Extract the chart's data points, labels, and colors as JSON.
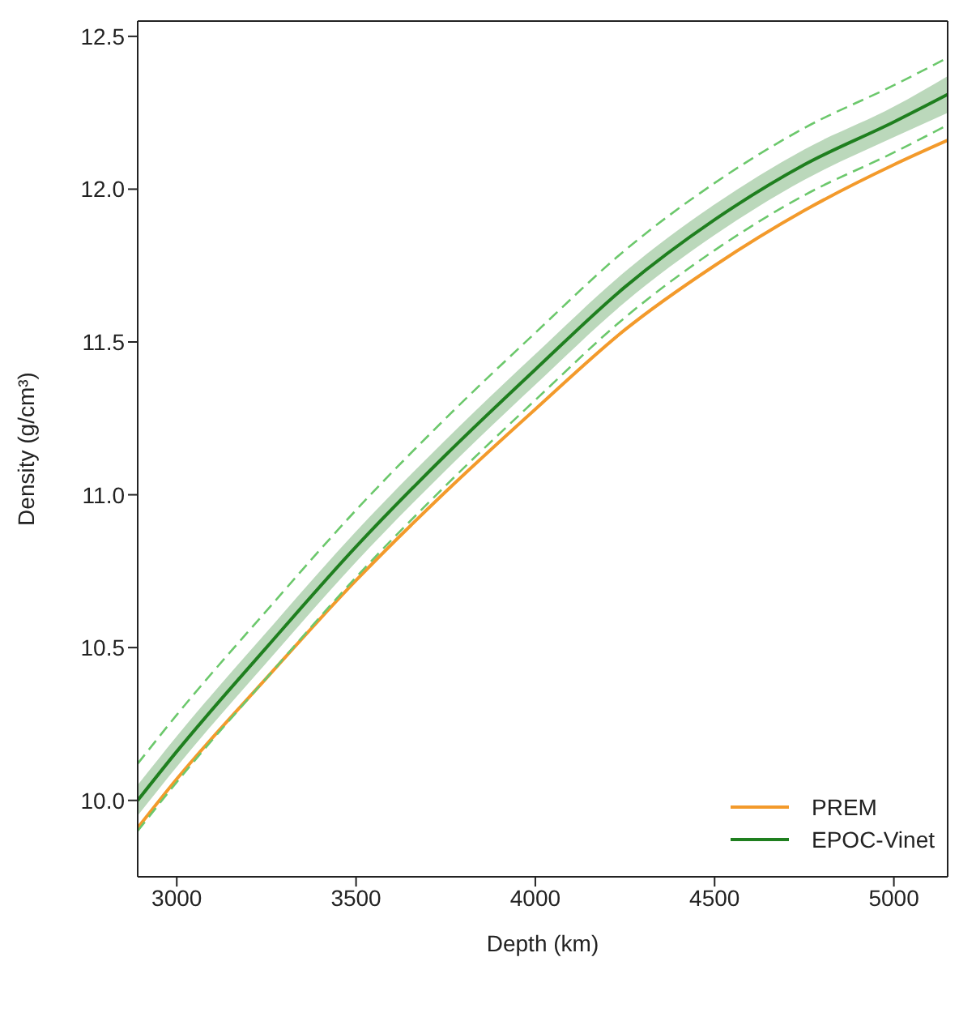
{
  "chart_data": {
    "type": "line",
    "xlabel": "Depth (km)",
    "ylabel": "Density (g/cm³)",
    "x": [
      2891,
      3000,
      3250,
      3500,
      3750,
      4000,
      4250,
      4500,
      4750,
      5000,
      5150
    ],
    "series": [
      {
        "name": "PREM",
        "color": "#f39a2b",
        "values": [
          9.91,
          10.07,
          10.4,
          10.72,
          11.01,
          11.28,
          11.54,
          11.75,
          11.93,
          12.08,
          12.16
        ]
      },
      {
        "name": "EPOC-Vinet",
        "color": "#1f7f1f",
        "values": [
          10.0,
          10.16,
          10.5,
          10.83,
          11.13,
          11.41,
          11.68,
          11.9,
          12.08,
          12.22,
          12.31
        ],
        "lower": [
          9.95,
          10.11,
          10.45,
          10.78,
          11.08,
          11.36,
          11.63,
          11.85,
          12.03,
          12.17,
          12.25
        ],
        "upper": [
          10.05,
          10.21,
          10.55,
          10.88,
          11.18,
          11.46,
          11.73,
          11.95,
          12.13,
          12.27,
          12.37
        ]
      },
      {
        "color": "#6cc86c",
        "line_style": "dashed",
        "values": [
          10.12,
          10.28,
          10.62,
          10.95,
          11.25,
          11.53,
          11.8,
          12.02,
          12.2,
          12.34,
          12.43
        ]
      },
      {
        "color": "#6cc86c",
        "line_style": "dashed",
        "values": [
          9.9,
          10.06,
          10.4,
          10.73,
          11.03,
          11.31,
          11.58,
          11.8,
          11.98,
          12.12,
          12.21
        ]
      }
    ],
    "xlim": [
      2891,
      5150
    ],
    "ylim": [
      9.75,
      12.55
    ],
    "xticks": [
      3000,
      3500,
      4000,
      4500,
      5000
    ],
    "yticks": [
      {
        "value": 10,
        "label": "10.0"
      },
      10.5,
      {
        "value": 11,
        "label": "11.0"
      },
      11.5,
      {
        "value": 12,
        "label": "12.0"
      },
      12.5
    ],
    "legend": "bottom right"
  }
}
